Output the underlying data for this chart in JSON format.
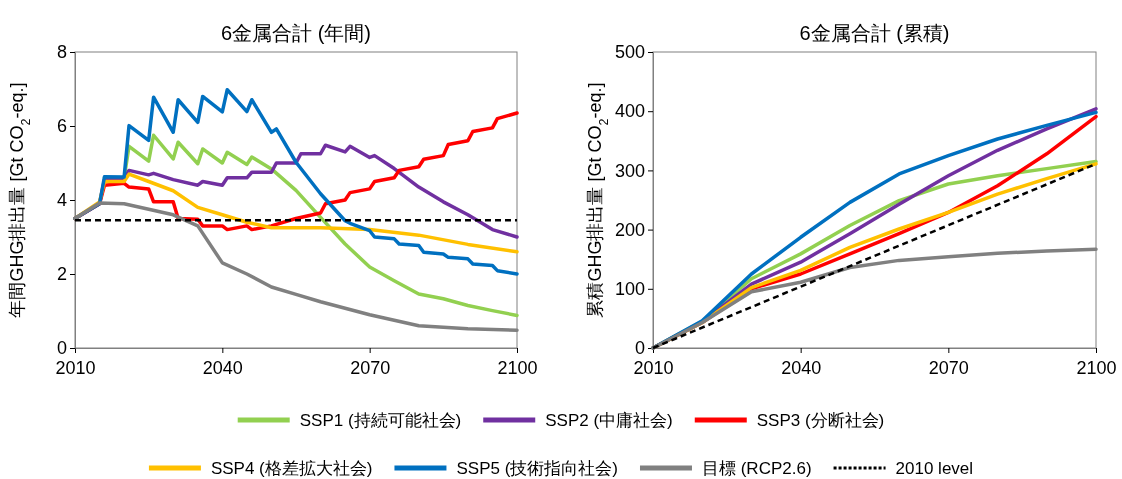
{
  "chart_data": [
    {
      "type": "line",
      "title": "6金属合計 (年間)",
      "ylabel": "年間GHG排出量 [Gt CO$_{2}$-eq.]",
      "xlim": [
        2010,
        2100
      ],
      "xticks": [
        2010,
        2040,
        2070,
        2100
      ],
      "ylim": [
        0,
        8
      ],
      "yticks": [
        0,
        2,
        4,
        6,
        8
      ],
      "legend": "bottom",
      "series": [
        {
          "name": "SSP1 (持続可能社会)",
          "color": "#92d050",
          "x": [
            2016,
            2020,
            2021,
            2025,
            2026,
            2030,
            2031,
            2035,
            2036,
            2040,
            2041,
            2045,
            2046,
            2050,
            2055,
            2060,
            2065,
            2070,
            2075,
            2080,
            2085,
            2090,
            2095,
            2100
          ],
          "values": [
            4.6,
            4.58,
            5.45,
            5.05,
            5.75,
            5.11,
            5.56,
            4.98,
            5.38,
            5.0,
            5.29,
            4.96,
            5.16,
            4.84,
            4.26,
            3.53,
            2.81,
            2.19,
            1.82,
            1.46,
            1.33,
            1.15,
            1.01,
            0.88
          ]
        },
        {
          "name": "SSP2 (中庸社会)",
          "color": "#7030a0",
          "x": [
            2010,
            2015,
            2016,
            2020,
            2021,
            2025,
            2026,
            2030,
            2035,
            2036,
            2040,
            2041,
            2045,
            2046,
            2050,
            2051,
            2055,
            2056,
            2060,
            2061,
            2065,
            2066,
            2070,
            2071,
            2075,
            2080,
            2085,
            2090,
            2095,
            2100
          ],
          "values": [
            3.5,
            3.9,
            4.55,
            4.55,
            4.8,
            4.68,
            4.72,
            4.55,
            4.4,
            4.5,
            4.4,
            4.6,
            4.6,
            4.75,
            4.75,
            5.0,
            5.0,
            5.25,
            5.25,
            5.48,
            5.3,
            5.45,
            5.15,
            5.2,
            4.85,
            4.35,
            3.95,
            3.6,
            3.2,
            3.0
          ]
        },
        {
          "name": "SSP3 (分断社会)",
          "color": "#ff0000",
          "x": [
            2010,
            2015,
            2016,
            2020,
            2021,
            2025,
            2026,
            2030,
            2031,
            2035,
            2036,
            2040,
            2041,
            2045,
            2046,
            2050,
            2055,
            2060,
            2061,
            2065,
            2066,
            2070,
            2071,
            2075,
            2076,
            2080,
            2081,
            2085,
            2086,
            2090,
            2091,
            2095,
            2096,
            2100
          ],
          "values": [
            3.5,
            3.9,
            4.4,
            4.45,
            4.35,
            4.3,
            3.95,
            3.95,
            3.5,
            3.48,
            3.3,
            3.3,
            3.2,
            3.3,
            3.2,
            3.3,
            3.5,
            3.65,
            3.9,
            4.0,
            4.2,
            4.3,
            4.5,
            4.6,
            4.8,
            4.9,
            5.1,
            5.2,
            5.5,
            5.6,
            5.85,
            5.95,
            6.2,
            6.35
          ]
        },
        {
          "name": "SSP4 (格差拡大社会)",
          "color": "#ffc000",
          "x": [
            2010,
            2015,
            2016,
            2020,
            2021,
            2025,
            2030,
            2035,
            2040,
            2045,
            2050,
            2060,
            2070,
            2080,
            2090,
            2100
          ],
          "values": [
            3.5,
            3.95,
            4.5,
            4.5,
            4.7,
            4.5,
            4.25,
            3.8,
            3.6,
            3.4,
            3.25,
            3.25,
            3.2,
            3.05,
            2.8,
            2.6
          ]
        },
        {
          "name": "SSP5 (技術指向社会)",
          "color": "#0070c0",
          "x": [
            2010,
            2015,
            2016,
            2020,
            2021,
            2025,
            2026,
            2030,
            2031,
            2035,
            2036,
            2040,
            2041,
            2045,
            2046,
            2050,
            2051,
            2055,
            2060,
            2065,
            2066,
            2070,
            2071,
            2075,
            2076,
            2080,
            2081,
            2085,
            2086,
            2090,
            2091,
            2095,
            2096,
            2100
          ],
          "values": [
            3.5,
            3.9,
            4.63,
            4.62,
            6.01,
            5.61,
            6.78,
            5.83,
            6.71,
            6.1,
            6.8,
            6.38,
            6.98,
            6.39,
            6.71,
            5.83,
            5.92,
            5.02,
            4.17,
            3.44,
            3.37,
            3.17,
            3.0,
            2.95,
            2.81,
            2.77,
            2.59,
            2.54,
            2.45,
            2.41,
            2.27,
            2.23,
            2.09,
            2.0
          ]
        },
        {
          "name": "目標 (RCP2.6)",
          "color": "#808080",
          "x": [
            2010,
            2015,
            2020,
            2025,
            2030,
            2035,
            2040,
            2045,
            2050,
            2055,
            2060,
            2070,
            2080,
            2090,
            2100
          ],
          "values": [
            3.5,
            3.92,
            3.9,
            3.75,
            3.6,
            3.3,
            2.3,
            2.0,
            1.65,
            1.45,
            1.25,
            0.9,
            0.6,
            0.52,
            0.48
          ]
        },
        {
          "name": "2010 level",
          "color": "#000000",
          "line_style": "dashed",
          "x": [
            2010,
            2100
          ],
          "values": [
            3.45,
            3.45
          ]
        }
      ]
    },
    {
      "type": "line",
      "title": "6金属合計 (累積)",
      "ylabel": "累積GHG排出量 [Gt CO$_{2}$-eq.]",
      "xlim": [
        2010,
        2100
      ],
      "xticks": [
        2010,
        2040,
        2070,
        2100
      ],
      "ylim": [
        0,
        500
      ],
      "yticks": [
        0,
        100,
        200,
        300,
        400,
        500
      ],
      "x": [
        2010,
        2020,
        2030,
        2040,
        2050,
        2060,
        2070,
        2080,
        2090,
        2100
      ],
      "series": [
        {
          "color": "#92d050",
          "values": [
            0,
            45,
            117,
            159,
            207,
            249,
            277,
            291,
            303,
            315
          ]
        },
        {
          "color": "#7030a0",
          "values": [
            0,
            44,
            108,
            145,
            193,
            243,
            291,
            334,
            370,
            404
          ]
        },
        {
          "color": "#ff0000",
          "values": [
            0,
            43,
            100,
            125,
            159,
            193,
            229,
            274,
            328,
            391
          ]
        },
        {
          "color": "#ffc000",
          "values": [
            0,
            43,
            102,
            131,
            170,
            201,
            229,
            260,
            286,
            311
          ]
        },
        {
          "color": "#0070c0",
          "values": [
            0,
            46,
            125,
            187,
            246,
            294,
            325,
            353,
            376,
            398
          ]
        },
        {
          "color": "#808080",
          "values": [
            0,
            43,
            95,
            111,
            136,
            148,
            154,
            160,
            164,
            167
          ]
        },
        {
          "color": "#000000",
          "line_style": "dashed",
          "x": [
            2010,
            2100
          ],
          "values": [
            0,
            311
          ]
        }
      ]
    }
  ]
}
